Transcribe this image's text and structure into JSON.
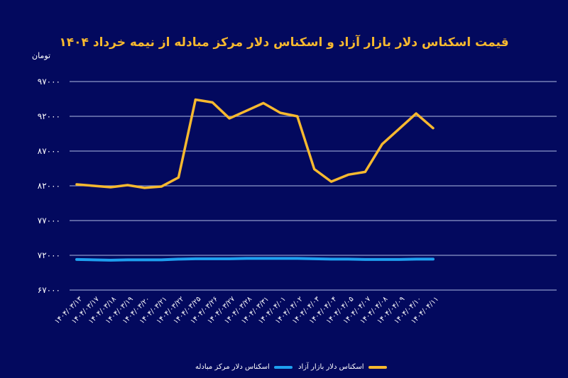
{
  "chart_data": {
    "type": "line",
    "title": "قیمت اسکناس دلار بازار آزاد و اسکناس دلار مرکز مبادله از نیمه خرداد ۱۴۰۴",
    "ylabel": "تومان",
    "xlabel": "",
    "ylim": [
      67000,
      97000
    ],
    "yticks": [
      97000,
      92000,
      87000,
      82000,
      77000,
      72000,
      67000
    ],
    "ytick_labels": [
      "۹۷۰۰۰",
      "۹۲۰۰۰",
      "۸۷۰۰۰",
      "۸۲۰۰۰",
      "۷۷۰۰۰",
      "۷۲۰۰۰",
      "۶۷۰۰۰"
    ],
    "grid": true,
    "legend_position": "bottom",
    "categories": [
      "۱۴۰۴/۰۳/۱۳",
      "۱۴۰۴/۰۳/۱۷",
      "۱۴۰۴/۰۳/۱۸",
      "۱۴۰۴/۰۳/۱۹",
      "۱۴۰۴/۰۳/۲۰",
      "۱۴۰۴/۰۳/۲۱",
      "۱۴۰۴/۰۳/۲۲",
      "۱۴۰۴/۰۳/۲۵",
      "۱۴۰۴/۰۳/۲۶",
      "۱۴۰۴/۰۳/۲۷",
      "۱۴۰۴/۰۳/۲۸",
      "۱۴۰۴/۰۳/۳۱",
      "۱۴۰۴/۰۴/۰۱",
      "۱۴۰۴/۰۴/۰۲",
      "۱۴۰۴/۰۴/۰۳",
      "۱۴۰۴/۰۴/۰۴",
      "۱۴۰۴/۰۴/۰۵",
      "۱۴۰۴/۰۴/۰۷",
      "۱۴۰۴/۰۴/۰۸",
      "۱۴۰۴/۰۴/۰۹",
      "۱۴۰۴/۰۴/۱۰",
      "۱۴۰۴/۰۴/۱۱"
    ],
    "series": [
      {
        "name": "اسکناس دلار بازار آزاد",
        "color": "#f7b92f",
        "values": [
          82200,
          82000,
          81800,
          82100,
          81700,
          81900,
          83200,
          94400,
          94000,
          91700,
          92800,
          93900,
          92500,
          92000,
          84400,
          82600,
          83600,
          84000,
          88000,
          90200,
          92400,
          90300
        ]
      },
      {
        "name": "اسکناس دلار مرکز مبادله",
        "color": "#1ea0f0",
        "values": [
          71400,
          71350,
          71300,
          71350,
          71350,
          71350,
          71450,
          71500,
          71500,
          71500,
          71550,
          71550,
          71550,
          71550,
          71500,
          71450,
          71450,
          71400,
          71400,
          71400,
          71450,
          71450
        ]
      }
    ]
  }
}
